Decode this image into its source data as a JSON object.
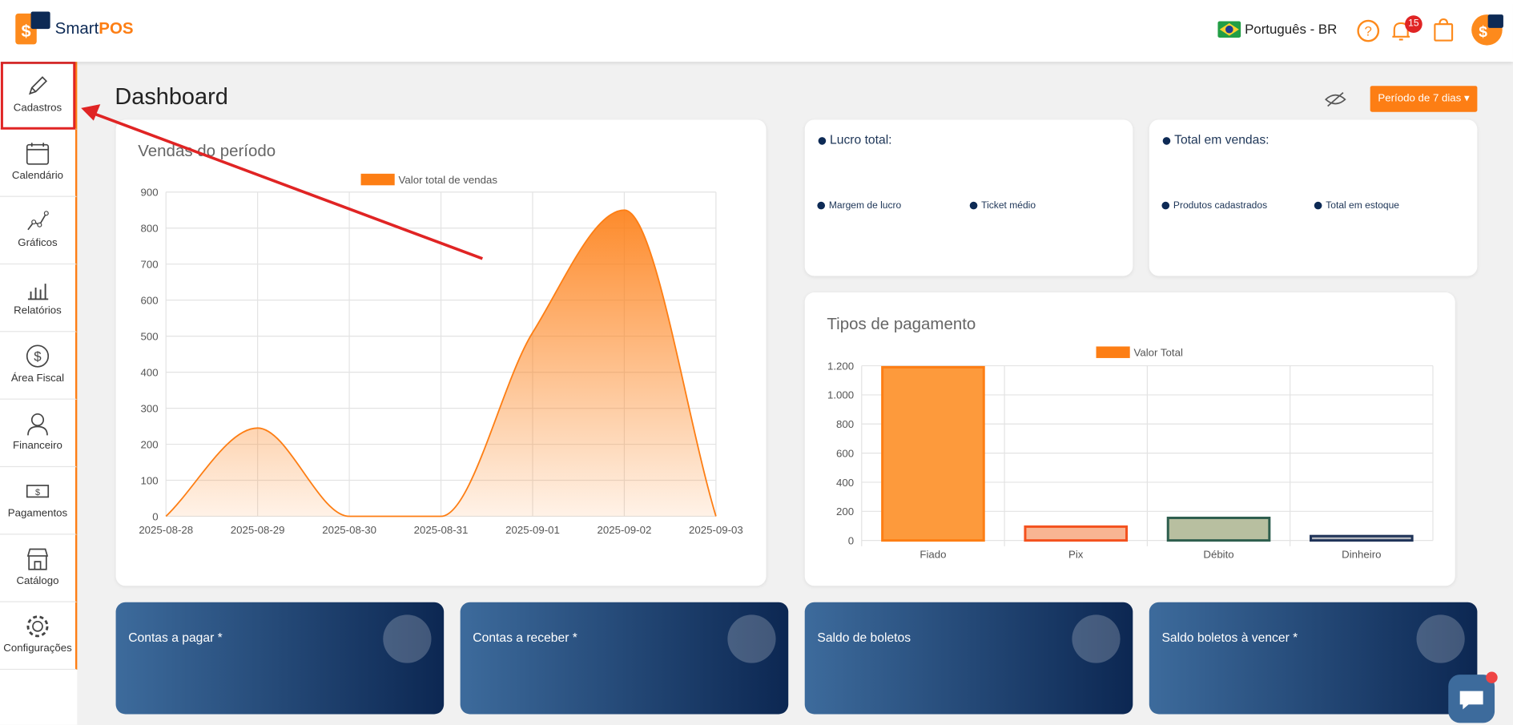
{
  "header": {
    "logo_text": "Smart",
    "logo_accent": "POS",
    "language": "Português - BR",
    "notifications": "15"
  },
  "sidebar": {
    "items": [
      "Cadastros",
      "Calendário",
      "Gráficos",
      "Relatórios",
      "Área Fiscal",
      "Financeiro",
      "Pagamentos",
      "Catálogo",
      "Configurações"
    ]
  },
  "dashboard": {
    "title": "Dashboard",
    "period_button": "Período de 7 dias",
    "profit_card": {
      "title": "Lucro total:",
      "items": [
        "Margem de lucro",
        "Ticket médio"
      ]
    },
    "sales_card": {
      "title": "Total em vendas:",
      "items": [
        "Produtos cadastrados",
        "Total em estoque"
      ]
    },
    "bottom_cards": [
      "Contas a pagar *",
      "Contas a receber *",
      "Saldo de boletos",
      "Saldo boletos à vencer *"
    ]
  },
  "chart_data": [
    {
      "type": "area",
      "title": "Vendas do período",
      "categories": [
        "2025-08-28",
        "2025-08-29",
        "2025-08-30",
        "2025-08-31",
        "2025-09-01",
        "2025-09-02",
        "2025-09-03"
      ],
      "series": [
        {
          "name": "Valor total de vendas",
          "color": "#fd7e14",
          "values": [
            0,
            245,
            0,
            0,
            510,
            850,
            0
          ]
        }
      ],
      "ylim": [
        0,
        900
      ],
      "yticks": [
        0,
        100,
        200,
        300,
        400,
        500,
        600,
        700,
        800,
        900
      ],
      "grid": true
    },
    {
      "type": "bar",
      "title": "Tipos de pagamento",
      "categories": [
        "Fiado",
        "Pix",
        "Débito",
        "Dinheiro"
      ],
      "series": [
        {
          "name": "Valor Total",
          "color": "#fd7e14",
          "values": [
            1190,
            95,
            155,
            30
          ],
          "colors": [
            "#fd9a3c",
            "#f8b593",
            "#b8bfa0",
            "#b3b6bd"
          ],
          "border_colors": [
            "#fd7e14",
            "#f4511e",
            "#2e5e4e",
            "#1f3358"
          ]
        }
      ],
      "ylim": [
        0,
        1200
      ],
      "yticks": [
        0,
        200,
        400,
        600,
        800,
        {
          "value": 1000,
          "label": "1.000"
        },
        {
          "value": 1200,
          "label": "1.200"
        }
      ],
      "grid": true
    }
  ]
}
